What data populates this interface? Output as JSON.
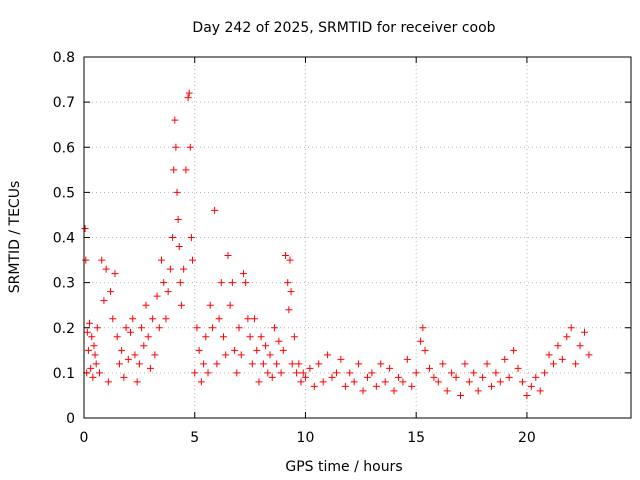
{
  "chart_data": {
    "type": "scatter",
    "title": "Day 242 of 2025, SRMTID for receiver coob",
    "xlabel": "GPS time / hours",
    "ylabel": "SRMTID / TECUs",
    "xlim": [
      0,
      24.7
    ],
    "ylim": [
      0,
      0.8
    ],
    "xticks": [
      0,
      5,
      10,
      15,
      20
    ],
    "yticks": [
      0,
      0.1,
      0.2,
      0.3,
      0.4,
      0.5,
      0.6,
      0.7,
      0.8
    ],
    "grid": true,
    "marker": "+",
    "color": "#ff0000",
    "series": [
      {
        "name": "SRMTID",
        "x": [
          0.05,
          0.08,
          0.12,
          0.15,
          0.2,
          0.25,
          0.3,
          0.35,
          0.4,
          0.45,
          0.5,
          0.55,
          0.6,
          0.7,
          0.8,
          0.9,
          1.0,
          1.1,
          1.2,
          1.3,
          1.4,
          1.5,
          1.6,
          1.7,
          1.8,
          1.9,
          2.0,
          2.1,
          2.2,
          2.3,
          2.4,
          2.5,
          2.6,
          2.7,
          2.8,
          2.9,
          3.0,
          3.1,
          3.2,
          3.3,
          3.4,
          3.5,
          3.6,
          3.7,
          3.8,
          3.9,
          4.0,
          4.05,
          4.1,
          4.15,
          4.2,
          4.25,
          4.3,
          4.35,
          4.4,
          4.5,
          4.6,
          4.7,
          4.75,
          4.8,
          4.85,
          4.9,
          5.0,
          5.1,
          5.2,
          5.3,
          5.4,
          5.5,
          5.6,
          5.7,
          5.8,
          5.9,
          6.0,
          6.1,
          6.2,
          6.3,
          6.4,
          6.5,
          6.6,
          6.7,
          6.8,
          6.9,
          7.0,
          7.1,
          7.2,
          7.3,
          7.4,
          7.5,
          7.6,
          7.7,
          7.8,
          7.9,
          8.0,
          8.1,
          8.2,
          8.3,
          8.4,
          8.5,
          8.6,
          8.7,
          8.8,
          8.9,
          9.0,
          9.1,
          9.2,
          9.25,
          9.3,
          9.35,
          9.4,
          9.5,
          9.6,
          9.7,
          9.8,
          9.9,
          10.0,
          10.2,
          10.4,
          10.6,
          10.8,
          11.0,
          11.2,
          11.4,
          11.6,
          11.8,
          12.0,
          12.2,
          12.4,
          12.6,
          12.8,
          13.0,
          13.2,
          13.4,
          13.6,
          13.8,
          14.0,
          14.2,
          14.4,
          14.6,
          14.8,
          15.0,
          15.2,
          15.3,
          15.4,
          15.6,
          15.8,
          16.0,
          16.2,
          16.4,
          16.6,
          16.8,
          17.0,
          17.2,
          17.4,
          17.6,
          17.8,
          18.0,
          18.2,
          18.4,
          18.6,
          18.8,
          19.0,
          19.2,
          19.4,
          19.6,
          19.8,
          20.0,
          20.2,
          20.4,
          20.6,
          20.8,
          21.0,
          21.2,
          21.4,
          21.6,
          21.8,
          22.0,
          22.2,
          22.4,
          22.6,
          22.8
        ],
        "y": [
          0.42,
          0.35,
          0.1,
          0.19,
          0.15,
          0.21,
          0.11,
          0.18,
          0.09,
          0.16,
          0.14,
          0.12,
          0.2,
          0.1,
          0.35,
          0.26,
          0.33,
          0.08,
          0.28,
          0.22,
          0.32,
          0.18,
          0.12,
          0.15,
          0.09,
          0.2,
          0.13,
          0.19,
          0.22,
          0.14,
          0.08,
          0.12,
          0.2,
          0.16,
          0.25,
          0.18,
          0.11,
          0.22,
          0.14,
          0.27,
          0.2,
          0.35,
          0.3,
          0.22,
          0.28,
          0.33,
          0.4,
          0.55,
          0.66,
          0.6,
          0.5,
          0.44,
          0.38,
          0.3,
          0.25,
          0.33,
          0.55,
          0.71,
          0.72,
          0.6,
          0.4,
          0.35,
          0.1,
          0.2,
          0.15,
          0.08,
          0.12,
          0.18,
          0.1,
          0.25,
          0.2,
          0.46,
          0.12,
          0.22,
          0.3,
          0.18,
          0.14,
          0.36,
          0.25,
          0.3,
          0.15,
          0.1,
          0.2,
          0.14,
          0.32,
          0.3,
          0.22,
          0.18,
          0.12,
          0.22,
          0.15,
          0.08,
          0.18,
          0.12,
          0.16,
          0.1,
          0.14,
          0.09,
          0.2,
          0.12,
          0.17,
          0.1,
          0.15,
          0.36,
          0.3,
          0.24,
          0.35,
          0.28,
          0.12,
          0.18,
          0.1,
          0.12,
          0.08,
          0.1,
          0.09,
          0.11,
          0.07,
          0.12,
          0.08,
          0.14,
          0.09,
          0.1,
          0.13,
          0.07,
          0.1,
          0.08,
          0.12,
          0.06,
          0.09,
          0.1,
          0.07,
          0.12,
          0.08,
          0.11,
          0.06,
          0.09,
          0.08,
          0.13,
          0.07,
          0.1,
          0.17,
          0.2,
          0.15,
          0.11,
          0.09,
          0.08,
          0.12,
          0.06,
          0.1,
          0.09,
          0.05,
          0.12,
          0.08,
          0.1,
          0.06,
          0.09,
          0.12,
          0.07,
          0.1,
          0.08,
          0.13,
          0.09,
          0.15,
          0.11,
          0.08,
          0.05,
          0.07,
          0.09,
          0.06,
          0.1,
          0.14,
          0.12,
          0.16,
          0.13,
          0.18,
          0.2,
          0.12,
          0.16,
          0.19,
          0.14
        ]
      }
    ]
  }
}
